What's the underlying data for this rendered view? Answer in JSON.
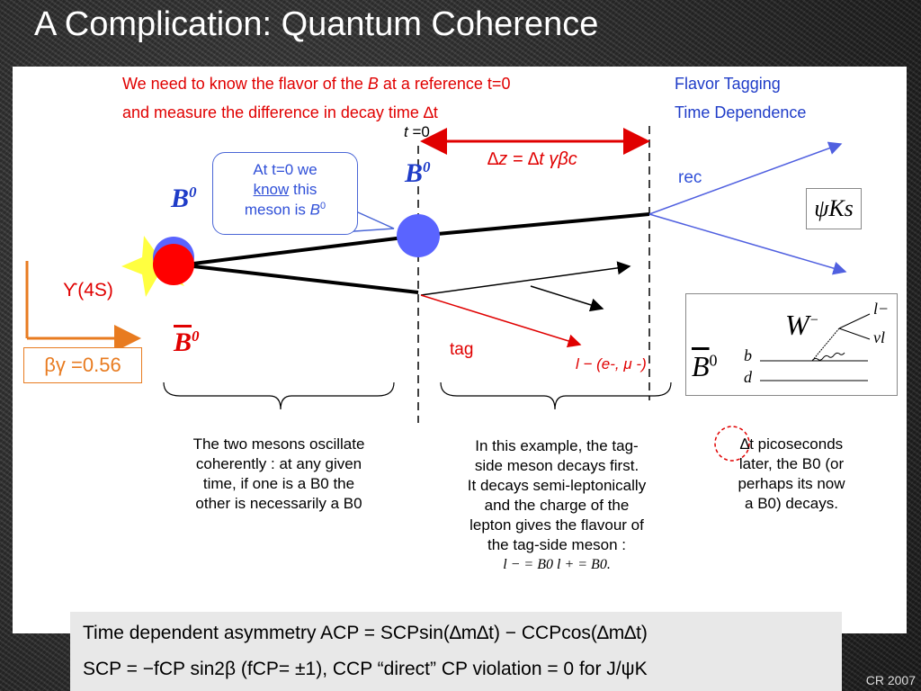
{
  "title": "A Complication: Quantum Coherence",
  "top": {
    "line1_a": "We need to know the flavor of the ",
    "line1_b": "B",
    "line1_c": " at a reference t=0",
    "line2": "and measure the difference in decay time ∆t",
    "flavor_tagging": "Flavor Tagging",
    "time_dependence": "Time Dependence"
  },
  "diagram": {
    "t0_t": "t",
    "t0_eq": " =0",
    "dz": "∆z = ∆t γβc",
    "b0": "B",
    "sup0": "0",
    "upsilon": "ϒ(4S)",
    "rec": "rec",
    "tag": "tag",
    "lepton": "l − (e-, μ -)",
    "psiks": "ψKs",
    "callout_1": "At t=0 we",
    "callout_2": "know",
    "callout_3": " this",
    "callout_4": "meson is ",
    "callout_5": "B",
    "callout_6": "0",
    "betagamma": "βγ =0.56",
    "feyn_W": "W",
    "feyn_wsup": "−",
    "feyn_l": "l−",
    "feyn_nu": "νl",
    "feyn_B": "B",
    "feyn_b": "b",
    "feyn_d": "d"
  },
  "captions": {
    "left": [
      "The two mesons oscillate",
      "coherently : at any given",
      "time, if one is a B0 the",
      "other is necessarily a B0"
    ],
    "middle": [
      "In this example, the tag-",
      "side meson decays first.",
      "It decays semi-leptonically",
      "and the charge of the",
      "lepton gives the flavour of",
      "the tag-side meson :",
      "l − = B0      l + = B0."
    ],
    "right": [
      "∆t picoseconds",
      "later, the B0 (or",
      "perhaps its now",
      "a B0) decays."
    ]
  },
  "bottom": {
    "eq1": "Time dependent asymmetry ACP = SCPsin(∆m∆t) − CCPcos(∆m∆t)",
    "eq2": "SCP = −fCP sin2β (fCP= ±1),  CCP “direct” CP violation = 0 for J/ψK"
  },
  "footer": "CR 2007",
  "colors": {
    "accent_red": "#e00000",
    "accent_blue": "#1f3cc8",
    "orange": "#e87b20",
    "meson_blue": "#5a64ff",
    "meson_red": "#ff0000",
    "flash_yellow": "#ffff40"
  }
}
